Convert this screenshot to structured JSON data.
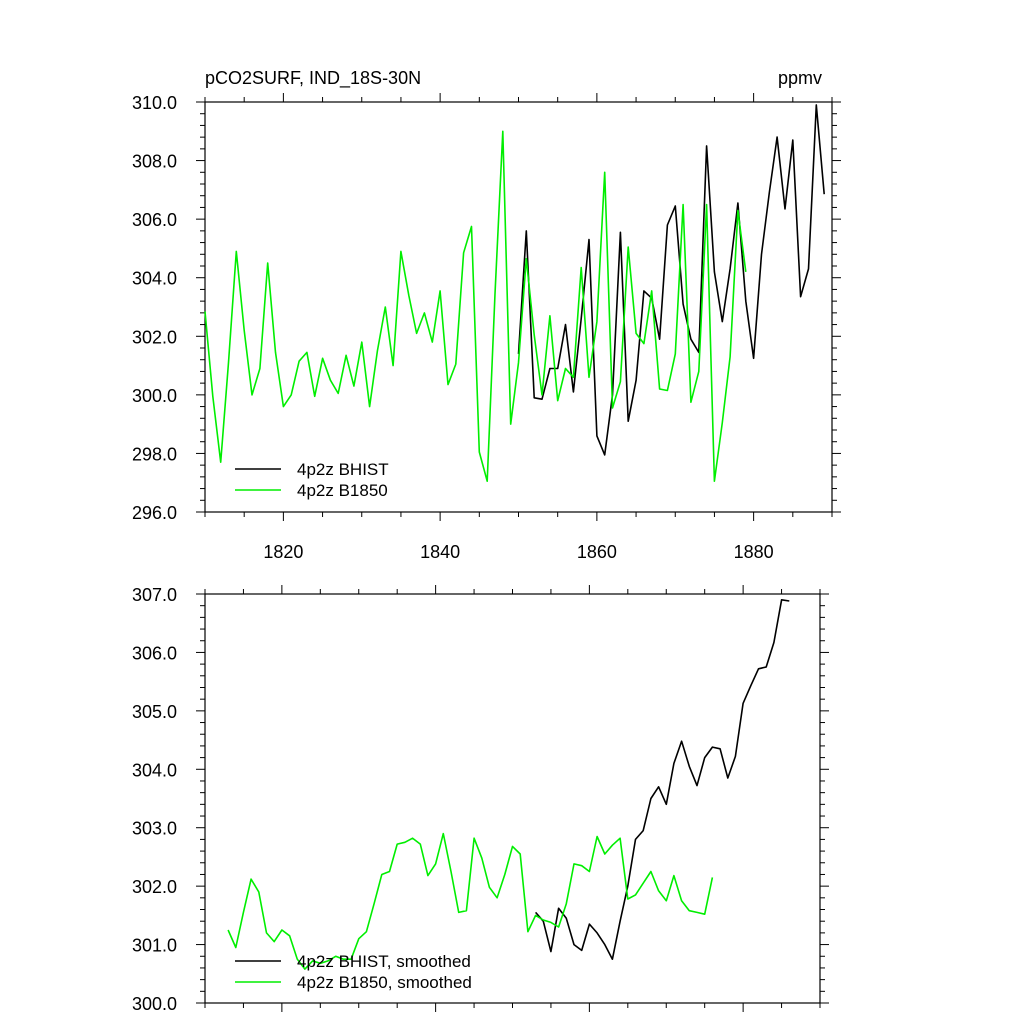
{
  "chart_data": [
    {
      "type": "line",
      "title": "pCO2SURF, IND_18S-30N",
      "units": "ppmv",
      "xlim": [
        1810,
        1890
      ],
      "ylim": [
        296,
        310
      ],
      "xticks": [
        1820,
        1840,
        1860,
        1880
      ],
      "xtick_labels": [
        "1820",
        "1840",
        "1860",
        "1880"
      ],
      "yticks": [
        296,
        298,
        300,
        302,
        304,
        306,
        308,
        310
      ],
      "ytick_labels": [
        "296.0",
        "298.0",
        "300.0",
        "302.0",
        "304.0",
        "306.0",
        "308.0",
        "310.0"
      ],
      "legend_position": "bottom-left",
      "series": [
        {
          "name": "4p2z BHIST",
          "color": "#000000",
          "x": [
            1850,
            1851,
            1852,
            1853,
            1854,
            1855,
            1856,
            1857,
            1858,
            1859,
            1860,
            1861,
            1862,
            1863,
            1864,
            1865,
            1866,
            1867,
            1868,
            1869,
            1870,
            1871,
            1872,
            1873,
            1874,
            1875,
            1876,
            1877,
            1878,
            1879,
            1880,
            1881,
            1882,
            1883,
            1884,
            1885,
            1886,
            1887,
            1888,
            1889
          ],
          "y": [
            301.4,
            305.6,
            299.9,
            299.85,
            300.9,
            300.9,
            302.4,
            300.1,
            302.6,
            305.3,
            298.6,
            297.95,
            300.0,
            305.55,
            299.1,
            300.5,
            303.55,
            303.3,
            301.9,
            305.8,
            306.45,
            303.1,
            301.9,
            301.45,
            308.5,
            304.2,
            302.5,
            304.3,
            306.55,
            303.2,
            301.25,
            304.8,
            306.9,
            308.8,
            306.35,
            308.7,
            303.35,
            304.3,
            309.9,
            306.85
          ]
        },
        {
          "name": "4p2z B1850",
          "color": "#00ee00",
          "x": [
            1810,
            1811,
            1812,
            1813,
            1814,
            1815,
            1816,
            1817,
            1818,
            1819,
            1820,
            1821,
            1822,
            1823,
            1824,
            1825,
            1826,
            1827,
            1828,
            1829,
            1830,
            1831,
            1832,
            1833,
            1834,
            1835,
            1836,
            1837,
            1838,
            1839,
            1840,
            1841,
            1842,
            1843,
            1844,
            1845,
            1846,
            1847,
            1848,
            1849,
            1850,
            1851,
            1852,
            1853,
            1854,
            1855,
            1856,
            1857,
            1858,
            1859,
            1860,
            1861,
            1862,
            1863,
            1864,
            1865,
            1866,
            1867,
            1868,
            1869,
            1870,
            1871,
            1872,
            1873,
            1874,
            1875,
            1876,
            1877,
            1878,
            1879
          ],
          "y": [
            302.85,
            299.95,
            297.7,
            301.1,
            304.9,
            302.2,
            300.0,
            300.9,
            304.5,
            301.45,
            299.6,
            300.0,
            301.15,
            301.45,
            299.95,
            301.25,
            300.5,
            300.05,
            301.35,
            300.3,
            301.8,
            299.6,
            301.5,
            303.0,
            301.0,
            304.9,
            303.4,
            302.1,
            302.8,
            301.8,
            303.55,
            300.35,
            301.05,
            304.85,
            305.75,
            298.05,
            297.05,
            303.45,
            309.0,
            299.0,
            301.1,
            304.65,
            302.05,
            300.0,
            302.7,
            299.8,
            300.9,
            300.6,
            304.35,
            300.6,
            302.5,
            307.6,
            299.55,
            300.45,
            305.05,
            302.1,
            301.75,
            303.55,
            300.2,
            300.15,
            301.4,
            306.5,
            299.75,
            300.8,
            306.5,
            297.05,
            299.05,
            301.3,
            306.3,
            304.2
          ]
        }
      ]
    },
    {
      "type": "line",
      "title": "",
      "xlim": [
        1810,
        1890
      ],
      "ylim": [
        300,
        307
      ],
      "xticks": [
        1820,
        1840,
        1860,
        1880
      ],
      "yticks": [
        300,
        301,
        302,
        303,
        304,
        305,
        306,
        307
      ],
      "ytick_labels": [
        "300.0",
        "301.0",
        "302.0",
        "303.0",
        "304.0",
        "305.0",
        "306.0",
        "307.0"
      ],
      "legend_position": "bottom-left",
      "series": [
        {
          "name": "4p2z BHIST, smoothed",
          "color": "#000000",
          "x": [
            1853,
            1854,
            1855,
            1856,
            1857,
            1858,
            1859,
            1860,
            1861,
            1862,
            1863,
            1864,
            1865,
            1866,
            1867,
            1868,
            1869,
            1870,
            1871,
            1872,
            1873,
            1874,
            1875,
            1876,
            1877,
            1878,
            1879,
            1880,
            1881,
            1882,
            1883,
            1884,
            1885,
            1886
          ],
          "y": [
            301.55,
            301.4,
            300.88,
            301.62,
            301.45,
            301.0,
            300.9,
            301.35,
            301.2,
            301.0,
            300.75,
            301.4,
            302.0,
            302.8,
            302.95,
            303.5,
            303.7,
            303.4,
            304.1,
            304.48,
            304.05,
            303.72,
            304.2,
            304.38,
            304.35,
            303.85,
            304.22,
            305.13,
            305.43,
            305.72,
            305.75,
            306.17,
            306.9,
            306.88
          ]
        },
        {
          "name": "4p2z B1850, smoothed",
          "color": "#00ee00",
          "x": [
            1813,
            1814,
            1815,
            1816,
            1817,
            1818,
            1819,
            1820,
            1821,
            1822,
            1823,
            1824,
            1825,
            1826,
            1827,
            1828,
            1829,
            1830,
            1831,
            1832,
            1833,
            1834,
            1835,
            1836,
            1837,
            1838,
            1839,
            1840,
            1841,
            1842,
            1843,
            1844,
            1845,
            1846,
            1847,
            1848,
            1849,
            1850,
            1851,
            1852,
            1853,
            1854,
            1855,
            1856,
            1857,
            1858,
            1859,
            1860,
            1861,
            1862,
            1863,
            1864,
            1865,
            1866,
            1867,
            1868,
            1869,
            1870,
            1871,
            1872,
            1873,
            1874,
            1875,
            1876
          ],
          "y": [
            301.25,
            300.95,
            301.55,
            302.12,
            301.9,
            301.2,
            301.05,
            301.25,
            301.15,
            300.75,
            300.58,
            300.72,
            300.68,
            300.72,
            300.8,
            300.75,
            300.75,
            301.1,
            301.22,
            301.7,
            302.2,
            302.25,
            302.72,
            302.75,
            302.82,
            302.72,
            302.18,
            302.38,
            302.9,
            302.25,
            301.55,
            301.58,
            302.82,
            302.48,
            301.98,
            301.8,
            302.2,
            302.68,
            302.55,
            301.22,
            301.5,
            301.42,
            301.38,
            301.3,
            301.7,
            302.38,
            302.35,
            302.25,
            302.85,
            302.55,
            302.7,
            302.82,
            301.78,
            301.85,
            302.05,
            302.25,
            301.92,
            301.75,
            302.18,
            301.75,
            301.58,
            301.55,
            301.52,
            302.15
          ]
        }
      ]
    }
  ]
}
